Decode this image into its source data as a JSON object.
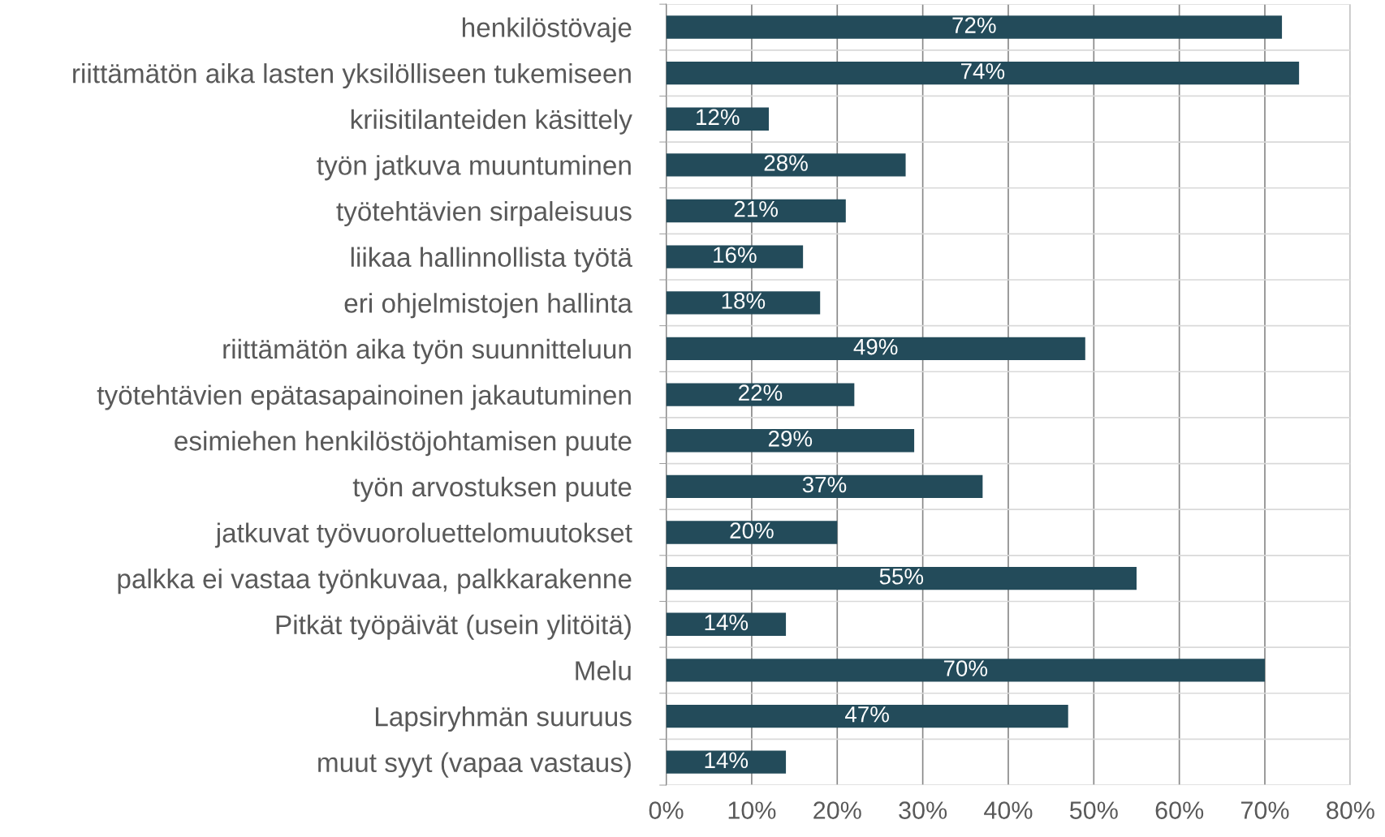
{
  "chart_data": {
    "type": "bar",
    "orientation": "horizontal",
    "categories": [
      "henkilöstövaje",
      "riittämätön aika lasten yksilölliseen tukemiseen",
      "kriisitilanteiden käsittely",
      "työn jatkuva muuntuminen",
      "työtehtävien sirpaleisuus",
      "liikaa hallinnollista työtä",
      "eri ohjelmistojen hallinta",
      "riittämätön aika työn suunnitteluun",
      "työtehtävien epätasapainoinen jakautuminen",
      "esimiehen henkilöstöjohtamisen puute",
      "työn arvostuksen puute",
      "jatkuvat työvuoroluettelomuutokset",
      "palkka ei vastaa työnkuvaa, palkkarakenne",
      "Pitkät työpäivät (usein ylitöitä)",
      "Melu",
      "Lapsiryhmän suuruus",
      "muut syyt (vapaa vastaus)"
    ],
    "values": [
      72,
      74,
      12,
      28,
      21,
      16,
      18,
      49,
      22,
      29,
      37,
      20,
      55,
      14,
      70,
      47,
      14
    ],
    "value_labels": [
      "72%",
      "74%",
      "12%",
      "28%",
      "21%",
      "16%",
      "18%",
      "49%",
      "22%",
      "29%",
      "37%",
      "20%",
      "55%",
      "14%",
      "70%",
      "47%",
      "14%"
    ],
    "color": "#234b5a",
    "xlim": [
      0,
      80
    ],
    "xticks": [
      {
        "value": 0,
        "label": "0%"
      },
      {
        "value": 10,
        "label": "10%"
      },
      {
        "value": 20,
        "label": "20%"
      },
      {
        "value": 30,
        "label": "30%"
      },
      {
        "value": 40,
        "label": "40%"
      },
      {
        "value": 50,
        "label": "50%"
      },
      {
        "value": 60,
        "label": "60%"
      },
      {
        "value": 70,
        "label": "70%"
      },
      {
        "value": 80,
        "label": "80%"
      }
    ],
    "grid": true,
    "legend": false
  }
}
